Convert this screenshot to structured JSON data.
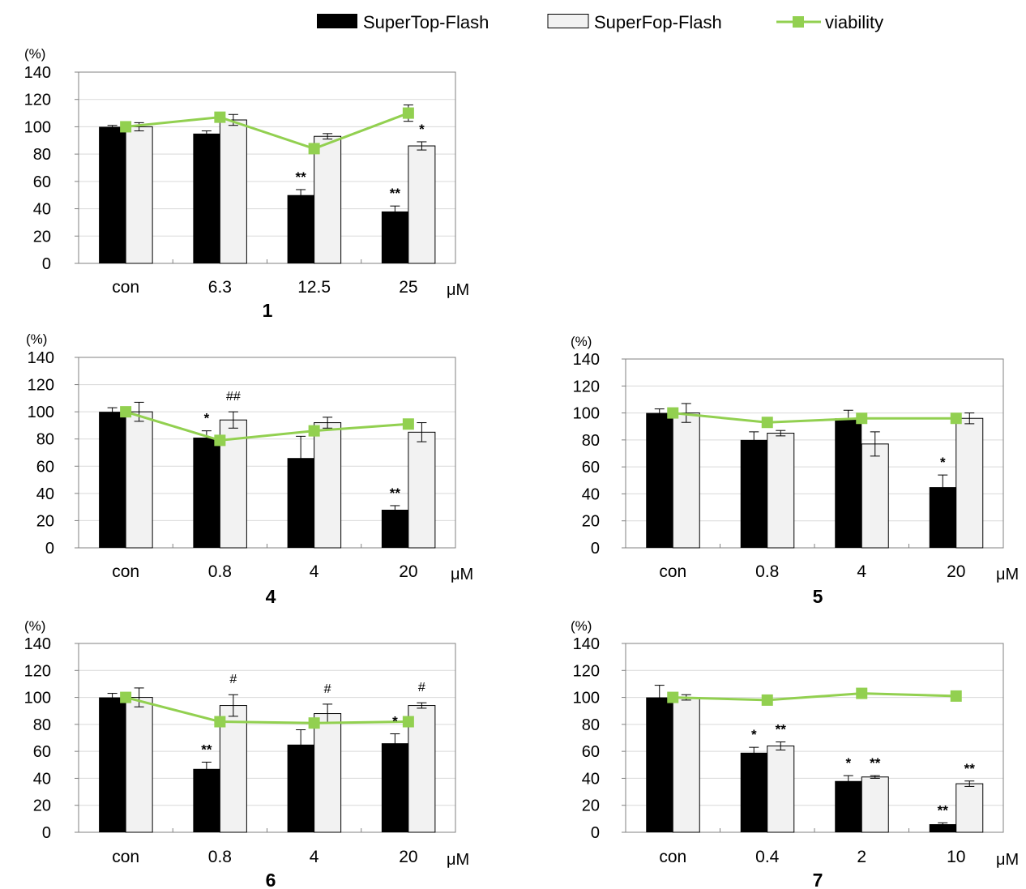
{
  "legend": [
    {
      "label": "SuperTop-Flash",
      "color": "#000000",
      "kind": "bar-solid"
    },
    {
      "label": "SuperFop-Flash",
      "color": "#f2f2f2",
      "kind": "bar-open"
    },
    {
      "label": "viability",
      "color": "#92d050",
      "kind": "line-marker"
    }
  ],
  "colors": {
    "top": "#000000",
    "fop": "#f2f2f2",
    "viability": "#92d050",
    "grid": "#d9d9d9"
  },
  "chart_data": [
    {
      "type": "bar",
      "panel_label": "1",
      "categories": [
        "con",
        "6.3",
        "12.5",
        "25"
      ],
      "unit": "μM",
      "ylabel": "(%)",
      "ylim": [
        0,
        140
      ],
      "yticks": [
        0,
        20,
        40,
        60,
        80,
        100,
        120,
        140
      ],
      "grid": true,
      "series": [
        {
          "name": "SuperTop-Flash",
          "values": [
            100,
            95,
            50,
            38
          ],
          "errors": [
            1,
            2,
            4,
            4
          ]
        },
        {
          "name": "SuperFop-Flash",
          "values": [
            100,
            105,
            93,
            86
          ],
          "errors": [
            3,
            4,
            2,
            3
          ]
        },
        {
          "name": "viability",
          "type": "line",
          "values": [
            100,
            107,
            84,
            110
          ],
          "errors": [
            0,
            0,
            0,
            6
          ]
        }
      ],
      "annotations": [
        {
          "text": "**",
          "category": 2,
          "series": 0
        },
        {
          "text": "**",
          "category": 3,
          "series": 0
        },
        {
          "text": "*",
          "category": 3,
          "series": 1
        }
      ]
    },
    {
      "type": "bar",
      "panel_label": "4",
      "categories": [
        "con",
        "0.8",
        "4",
        "20"
      ],
      "unit": "μM",
      "ylabel": "(%)",
      "ylim": [
        0,
        140
      ],
      "yticks": [
        0,
        20,
        40,
        60,
        80,
        100,
        120,
        140
      ],
      "grid": true,
      "series": [
        {
          "name": "SuperTop-Flash",
          "values": [
            100,
            81,
            66,
            28
          ],
          "errors": [
            3,
            5,
            16,
            3
          ]
        },
        {
          "name": "SuperFop-Flash",
          "values": [
            100,
            94,
            92,
            85
          ],
          "errors": [
            7,
            6,
            4,
            7
          ]
        },
        {
          "name": "viability",
          "type": "line",
          "values": [
            100,
            79,
            86,
            91
          ],
          "errors": [
            0,
            0,
            0,
            0
          ]
        }
      ],
      "annotations": [
        {
          "text": "*",
          "category": 1,
          "series": 0
        },
        {
          "text": "##",
          "category": 1,
          "series": 1
        },
        {
          "text": "**",
          "category": 3,
          "series": 0
        }
      ]
    },
    {
      "type": "bar",
      "panel_label": "5",
      "categories": [
        "con",
        "0.8",
        "4",
        "20"
      ],
      "unit": "μM",
      "ylabel": "(%)",
      "ylim": [
        0,
        140
      ],
      "yticks": [
        0,
        20,
        40,
        60,
        80,
        100,
        120,
        140
      ],
      "grid": true,
      "series": [
        {
          "name": "SuperTop-Flash",
          "values": [
            100,
            80,
            96,
            45
          ],
          "errors": [
            3,
            6,
            6,
            9
          ]
        },
        {
          "name": "SuperFop-Flash",
          "values": [
            100,
            85,
            77,
            96
          ],
          "errors": [
            7,
            2,
            9,
            4
          ]
        },
        {
          "name": "viability",
          "type": "line",
          "values": [
            100,
            93,
            96,
            96
          ],
          "errors": [
            0,
            0,
            0,
            0
          ]
        }
      ],
      "annotations": [
        {
          "text": "*",
          "category": 3,
          "series": 0
        }
      ]
    },
    {
      "type": "bar",
      "panel_label": "6",
      "categories": [
        "con",
        "0.8",
        "4",
        "20"
      ],
      "unit": "μM",
      "ylabel": "(%)",
      "ylim": [
        0,
        140
      ],
      "yticks": [
        0,
        20,
        40,
        60,
        80,
        100,
        120,
        140
      ],
      "grid": true,
      "series": [
        {
          "name": "SuperTop-Flash",
          "values": [
            100,
            47,
            65,
            66
          ],
          "errors": [
            3,
            5,
            11,
            7
          ]
        },
        {
          "name": "SuperFop-Flash",
          "values": [
            100,
            94,
            88,
            94
          ],
          "errors": [
            7,
            8,
            7,
            2
          ]
        },
        {
          "name": "viability",
          "type": "line",
          "values": [
            100,
            82,
            81,
            82
          ],
          "errors": [
            0,
            0,
            0,
            0
          ]
        }
      ],
      "annotations": [
        {
          "text": "**",
          "category": 1,
          "series": 0
        },
        {
          "text": "#",
          "category": 1,
          "series": 1
        },
        {
          "text": "#",
          "category": 2,
          "series": 1
        },
        {
          "text": "*",
          "category": 3,
          "series": 0
        },
        {
          "text": "#",
          "category": 3,
          "series": 1
        }
      ]
    },
    {
      "type": "bar",
      "panel_label": "7",
      "categories": [
        "con",
        "0.4",
        "2",
        "10"
      ],
      "unit": "μM",
      "ylabel": "(%)",
      "ylim": [
        0,
        140
      ],
      "yticks": [
        0,
        20,
        40,
        60,
        80,
        100,
        120,
        140
      ],
      "grid": true,
      "series": [
        {
          "name": "SuperTop-Flash",
          "values": [
            100,
            59,
            38,
            6
          ],
          "errors": [
            9,
            4,
            4,
            1
          ]
        },
        {
          "name": "SuperFop-Flash",
          "values": [
            100,
            64,
            41,
            36
          ],
          "errors": [
            2,
            3,
            1,
            2
          ]
        },
        {
          "name": "viability",
          "type": "line",
          "values": [
            100,
            98,
            103,
            101
          ],
          "errors": [
            0,
            0,
            0,
            0
          ]
        }
      ],
      "annotations": [
        {
          "text": "*",
          "category": 1,
          "series": 0
        },
        {
          "text": "**",
          "category": 1,
          "series": 1
        },
        {
          "text": "*",
          "category": 2,
          "series": 0
        },
        {
          "text": "**",
          "category": 2,
          "series": 1
        },
        {
          "text": "**",
          "category": 3,
          "series": 0
        },
        {
          "text": "**",
          "category": 3,
          "series": 1
        }
      ]
    }
  ]
}
